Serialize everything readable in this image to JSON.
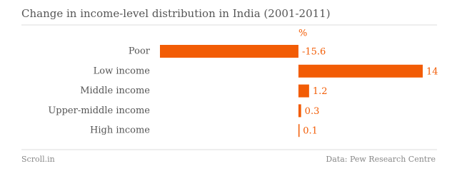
{
  "chart_data": {
    "type": "bar",
    "title": "Change in income-level distribution in India (2001-2011)",
    "unit": "%",
    "categories": [
      "Poor",
      "Low income",
      "Middle income",
      "Upper-middle income",
      "High income"
    ],
    "values": [
      -15.6,
      14,
      1.2,
      0.3,
      0.1
    ],
    "color": "#f25c05",
    "credit": "Scroll.in",
    "source": "Data: Pew Research Centre"
  }
}
